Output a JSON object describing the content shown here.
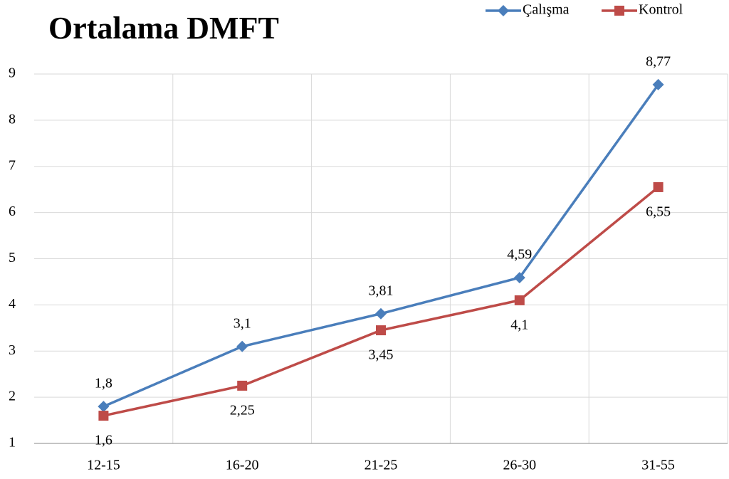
{
  "chart_data": {
    "type": "line",
    "title": "Ortalama DMFT",
    "categories": [
      "12-15",
      "16-20",
      "21-25",
      "26-30",
      "31-55"
    ],
    "series": [
      {
        "name": "Çalışma",
        "color": "#4a7ebb",
        "marker": "diamond",
        "values": [
          1.8,
          3.1,
          3.81,
          4.59,
          8.77
        ],
        "value_labels": [
          "1,8",
          "3,1",
          "3,81",
          "4,59",
          "8,77"
        ]
      },
      {
        "name": "Kontrol",
        "color": "#be4b48",
        "marker": "square",
        "values": [
          1.6,
          2.25,
          3.45,
          4.1,
          6.55
        ],
        "value_labels": [
          "1,6",
          "2,25",
          "3,45",
          "4,1",
          "6,55"
        ]
      }
    ],
    "ylim": [
      1,
      9
    ],
    "yticks": [
      1,
      2,
      3,
      4,
      5,
      6,
      7,
      8,
      9
    ],
    "grid": true,
    "legend": "upper right"
  }
}
